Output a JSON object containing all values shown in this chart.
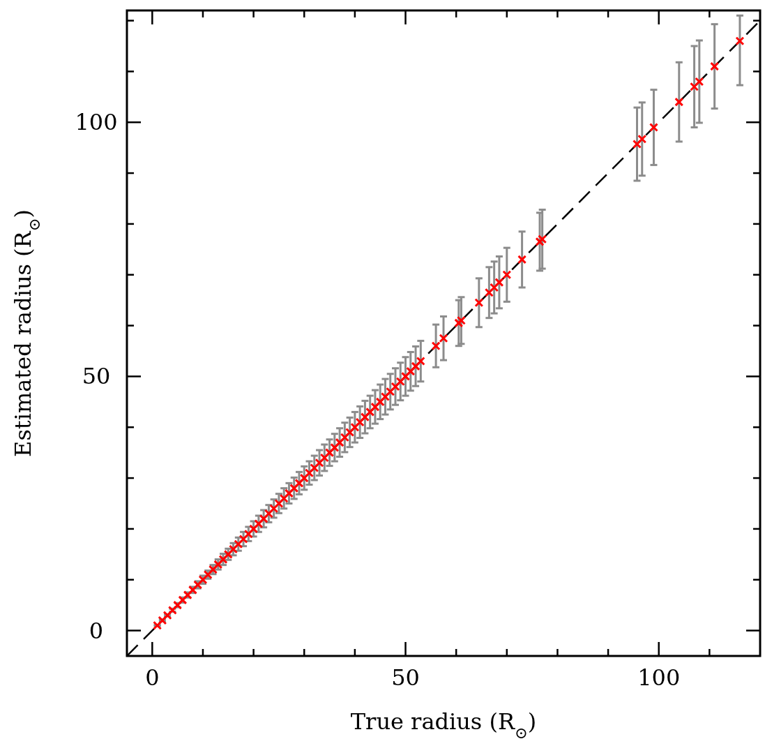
{
  "chart_data": {
    "type": "scatter",
    "xlabel": "True radius (R$_{⊙}$)",
    "ylabel": "Estimated radius (R$_{⊙}$)",
    "xlim": [
      -5,
      120
    ],
    "ylim": [
      -5,
      122
    ],
    "xticks": [
      0,
      {
        "value": 10,
        "label": null
      },
      {
        "value": 20,
        "label": null
      },
      {
        "value": 30,
        "label": null
      },
      {
        "value": 40,
        "label": null
      },
      50,
      {
        "value": 60,
        "label": null
      },
      {
        "value": 70,
        "label": null
      },
      {
        "value": 80,
        "label": null
      },
      {
        "value": 90,
        "label": null
      },
      100,
      {
        "value": 110,
        "label": null
      }
    ],
    "yticks": [
      0,
      {
        "value": 10,
        "label": null
      },
      {
        "value": 20,
        "label": null
      },
      {
        "value": 30,
        "label": null
      },
      {
        "value": 40,
        "label": null
      },
      50,
      {
        "value": 60,
        "label": null
      },
      {
        "value": 70,
        "label": null
      },
      {
        "value": 80,
        "label": null
      },
      {
        "value": 90,
        "label": null
      },
      100,
      {
        "value": 110,
        "label": null
      },
      {
        "value": 120,
        "label": null
      }
    ],
    "series": [
      {
        "color": "#ff0000",
        "marker": "cross",
        "x": [
          1,
          2,
          3,
          4,
          5,
          6,
          7,
          8,
          9,
          10,
          11,
          12,
          13,
          14,
          15,
          16,
          17,
          18,
          19,
          20,
          21,
          22,
          23,
          24,
          25,
          26,
          27,
          28,
          29,
          30,
          31,
          32,
          33,
          34,
          35,
          36,
          37,
          38,
          39,
          40,
          41,
          42,
          43,
          44,
          45,
          46,
          47,
          48,
          49,
          50,
          51,
          52,
          53,
          56,
          57.5,
          60.5,
          61,
          64.5,
          66.5,
          67.5,
          68.5,
          70,
          73,
          76.5,
          77,
          95.7,
          96.7,
          99,
          104,
          107,
          108,
          111,
          116
        ],
        "values": [
          1,
          2,
          3,
          4,
          5,
          6,
          7,
          8,
          9,
          10,
          11,
          12,
          13,
          14,
          15,
          16,
          17,
          18,
          19,
          20,
          21,
          22,
          23,
          24,
          25,
          26,
          27,
          28,
          29,
          30,
          31,
          32,
          33,
          34,
          35,
          36,
          37,
          38,
          39,
          40,
          41,
          42,
          43,
          44,
          45,
          46,
          47,
          48,
          49,
          50,
          51,
          52,
          53,
          56,
          57.5,
          60.5,
          61,
          64.5,
          66.5,
          67.5,
          68.5,
          70,
          73,
          76.5,
          77,
          95.7,
          96.7,
          99,
          104,
          107,
          108,
          111,
          116
        ],
        "errors": [
          0.1,
          0.2,
          0.2,
          0.3,
          0.4,
          0.5,
          0.5,
          0.6,
          0.7,
          0.8,
          0.8,
          0.9,
          1.0,
          1.1,
          1.1,
          1.2,
          1.3,
          1.4,
          1.4,
          1.5,
          1.6,
          1.7,
          1.7,
          1.8,
          1.9,
          2.0,
          2.0,
          2.1,
          2.2,
          2.3,
          2.3,
          2.4,
          2.5,
          2.6,
          2.6,
          2.7,
          2.8,
          2.9,
          2.9,
          3.0,
          3.1,
          3.2,
          3.2,
          3.3,
          3.4,
          3.5,
          3.5,
          3.6,
          3.7,
          3.8,
          3.8,
          3.9,
          4.0,
          4.2,
          4.3,
          4.5,
          4.6,
          4.8,
          5.0,
          5.1,
          5.1,
          5.3,
          5.5,
          5.7,
          5.8,
          7.2,
          7.2,
          7.4,
          7.8,
          8.0,
          8.1,
          8.3,
          [
            107.3,
            121
          ]
        ]
      },
      {
        "type": "line",
        "color": "#000000",
        "line_style": "dashed",
        "x": [
          -5,
          120
        ],
        "values": [
          -5,
          120
        ]
      }
    ]
  }
}
